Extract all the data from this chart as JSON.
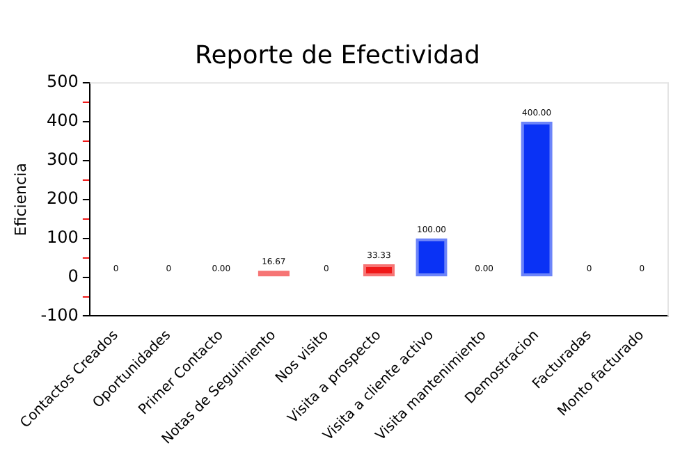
{
  "chart_data": {
    "type": "bar",
    "title": "Reporte de Efectividad",
    "ylabel": "Eficiencia",
    "categories": [
      "Contactos Creados",
      "Oportunidades",
      "Primer Contacto",
      "Notas de Seguimiento",
      "Nos visito",
      "Visita a prospecto",
      "Visita a cliente activo",
      "Visita mantenimiento",
      "Demostracion",
      "Facturadas",
      "Monto facturado"
    ],
    "values": [
      0,
      0,
      0,
      16.67,
      0,
      33.33,
      100,
      0,
      400,
      0,
      0
    ],
    "value_labels": [
      "0",
      "0",
      "0.00",
      "16.67",
      "0",
      "33.33",
      "100.00",
      "0.00",
      "400.00",
      "0",
      "0"
    ],
    "colors": [
      "#f01818",
      "#f01818",
      "#f01818",
      "#f01818",
      "#f01818",
      "#f01818",
      "#0a32f5",
      "#f01818",
      "#0a32f5",
      "#f01818",
      "#f01818"
    ],
    "ylim": [
      -100,
      500
    ],
    "yticks": [
      -100,
      {
        "value": -50,
        "label": null
      },
      0,
      {
        "value": 50,
        "label": null
      },
      100,
      {
        "value": 150,
        "label": null
      },
      200,
      {
        "value": 250,
        "label": null
      },
      300,
      {
        "value": 350,
        "label": null
      },
      400,
      {
        "value": 450,
        "label": null
      },
      500
    ],
    "grid": false,
    "legend": false
  }
}
